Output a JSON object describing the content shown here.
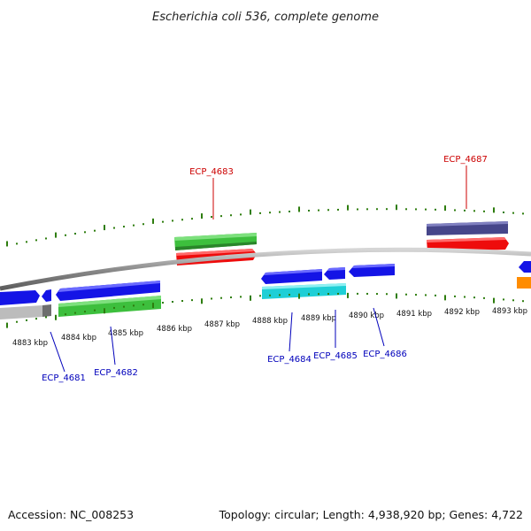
{
  "title": "Escherichia coli 536, complete genome",
  "footer": {
    "accession": "Accession: NC_008253",
    "summary": "Topology: circular; Length: 4,938,920 bp; Genes: 4,722"
  },
  "colors": {
    "backbone": "#8c8c8c",
    "tick": "#2e7d0e",
    "forward_label": "#cc0000",
    "reverse_label": "#0000bb",
    "green_gene": "#3dbf3d",
    "blue_gene": "#1414e6",
    "red_gene": "#ee0c0c",
    "cyan_gene": "#1ecfd6",
    "purple_gene": "#46468a",
    "orange_gene": "#ff8c00",
    "gray_gene": "#bcbcbc"
  },
  "scale": {
    "unit": "kbp",
    "labels": [
      "4883 kbp",
      "4884 kbp",
      "4885 kbp",
      "4886 kbp",
      "4887 kbp",
      "4888 kbp",
      "4889 kbp",
      "4890 kbp",
      "4891 kbp",
      "4892 kbp",
      "4893 kbp"
    ]
  },
  "gene_labels": {
    "forward": [
      "ECP_4683",
      "ECP_4687"
    ],
    "reverse": [
      "ECP_4681",
      "ECP_4682",
      "ECP_4684",
      "ECP_4685",
      "ECP_4686"
    ]
  }
}
